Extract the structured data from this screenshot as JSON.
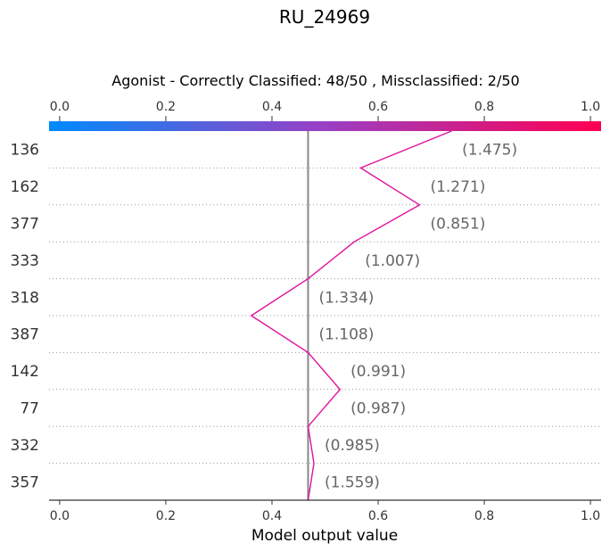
{
  "chart_data": {
    "type": "decision",
    "title": "RU_24969",
    "subtitle": "Agonist - Correctly Classified: 48/50 , Missclassified: 2/50",
    "xlabel": "Model output value",
    "xlim": [
      -0.02,
      1.02
    ],
    "xticks": [
      0.0,
      0.2,
      0.4,
      0.6,
      0.8,
      1.0
    ],
    "xtick_labels": [
      "0.0",
      "0.2",
      "0.4",
      "0.6",
      "0.8",
      "1.0"
    ],
    "base_value": 0.468,
    "colorbar": {
      "from": "#008bfb",
      "to": "#ff0052",
      "range": [
        0.0,
        1.0
      ]
    },
    "features": [
      {
        "name": "136",
        "value_label": "(1.475)"
      },
      {
        "name": "162",
        "value_label": "(1.271)"
      },
      {
        "name": "377",
        "value_label": "(0.851)"
      },
      {
        "name": "333",
        "value_label": "(1.007)"
      },
      {
        "name": "318",
        "value_label": "(1.334)"
      },
      {
        "name": "387",
        "value_label": "(1.108)"
      },
      {
        "name": "142",
        "value_label": "(0.991)"
      },
      {
        "name": "77",
        "value_label": "(0.987)"
      },
      {
        "name": "332",
        "value_label": "(0.985)"
      },
      {
        "name": "357",
        "value_label": "(1.559)"
      }
    ],
    "path_values": [
      0.738,
      0.567,
      0.678,
      0.555,
      0.468,
      0.361,
      0.468,
      0.528,
      0.468,
      0.479,
      0.468
    ],
    "line_color": "#e0119c"
  }
}
